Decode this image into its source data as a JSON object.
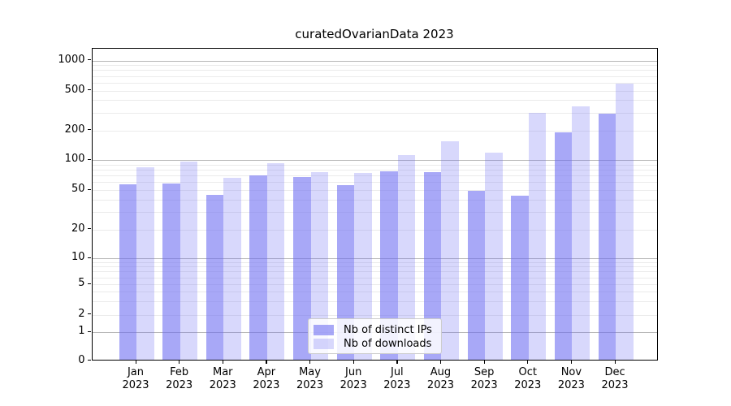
{
  "title": "curatedOvarianData 2023",
  "legend": {
    "series1_label": "Nb of distinct IPs",
    "series2_label": "Nb of downloads"
  },
  "colors": {
    "ips_bar": "rgba(105,105,242,0.58)",
    "downloads_bar": "rgba(105,105,242,0.26)",
    "major_grid": "#b8b8b8",
    "minor_grid": "#ebebeb",
    "spine": "#000000"
  },
  "chart_data": {
    "type": "bar",
    "title": "curatedOvarianData 2023",
    "categories": [
      "Jan 2023",
      "Feb 2023",
      "Mar 2023",
      "Apr 2023",
      "May 2023",
      "Jun 2023",
      "Jul 2023",
      "Aug 2023",
      "Sep 2023",
      "Oct 2023",
      "Nov 2023",
      "Dec 2023"
    ],
    "series": [
      {
        "name": "Nb of distinct IPs",
        "values": [
          57,
          58,
          45,
          70,
          68,
          56,
          77,
          76,
          49,
          44,
          190,
          295
        ]
      },
      {
        "name": "Nb of downloads",
        "values": [
          85,
          97,
          66,
          92,
          76,
          74,
          113,
          156,
          119,
          297,
          344,
          589
        ]
      }
    ],
    "xlabel": "",
    "ylabel": "",
    "y_scale": "symlog (linear 0-1, log above 1)",
    "y_ticks": [
      0,
      1,
      2,
      5,
      10,
      20,
      50,
      100,
      200,
      500,
      1000
    ],
    "ylim": [
      0,
      1300
    ],
    "grid": "major and minor horizontal gridlines",
    "legend_position": "lower center inside plot"
  }
}
